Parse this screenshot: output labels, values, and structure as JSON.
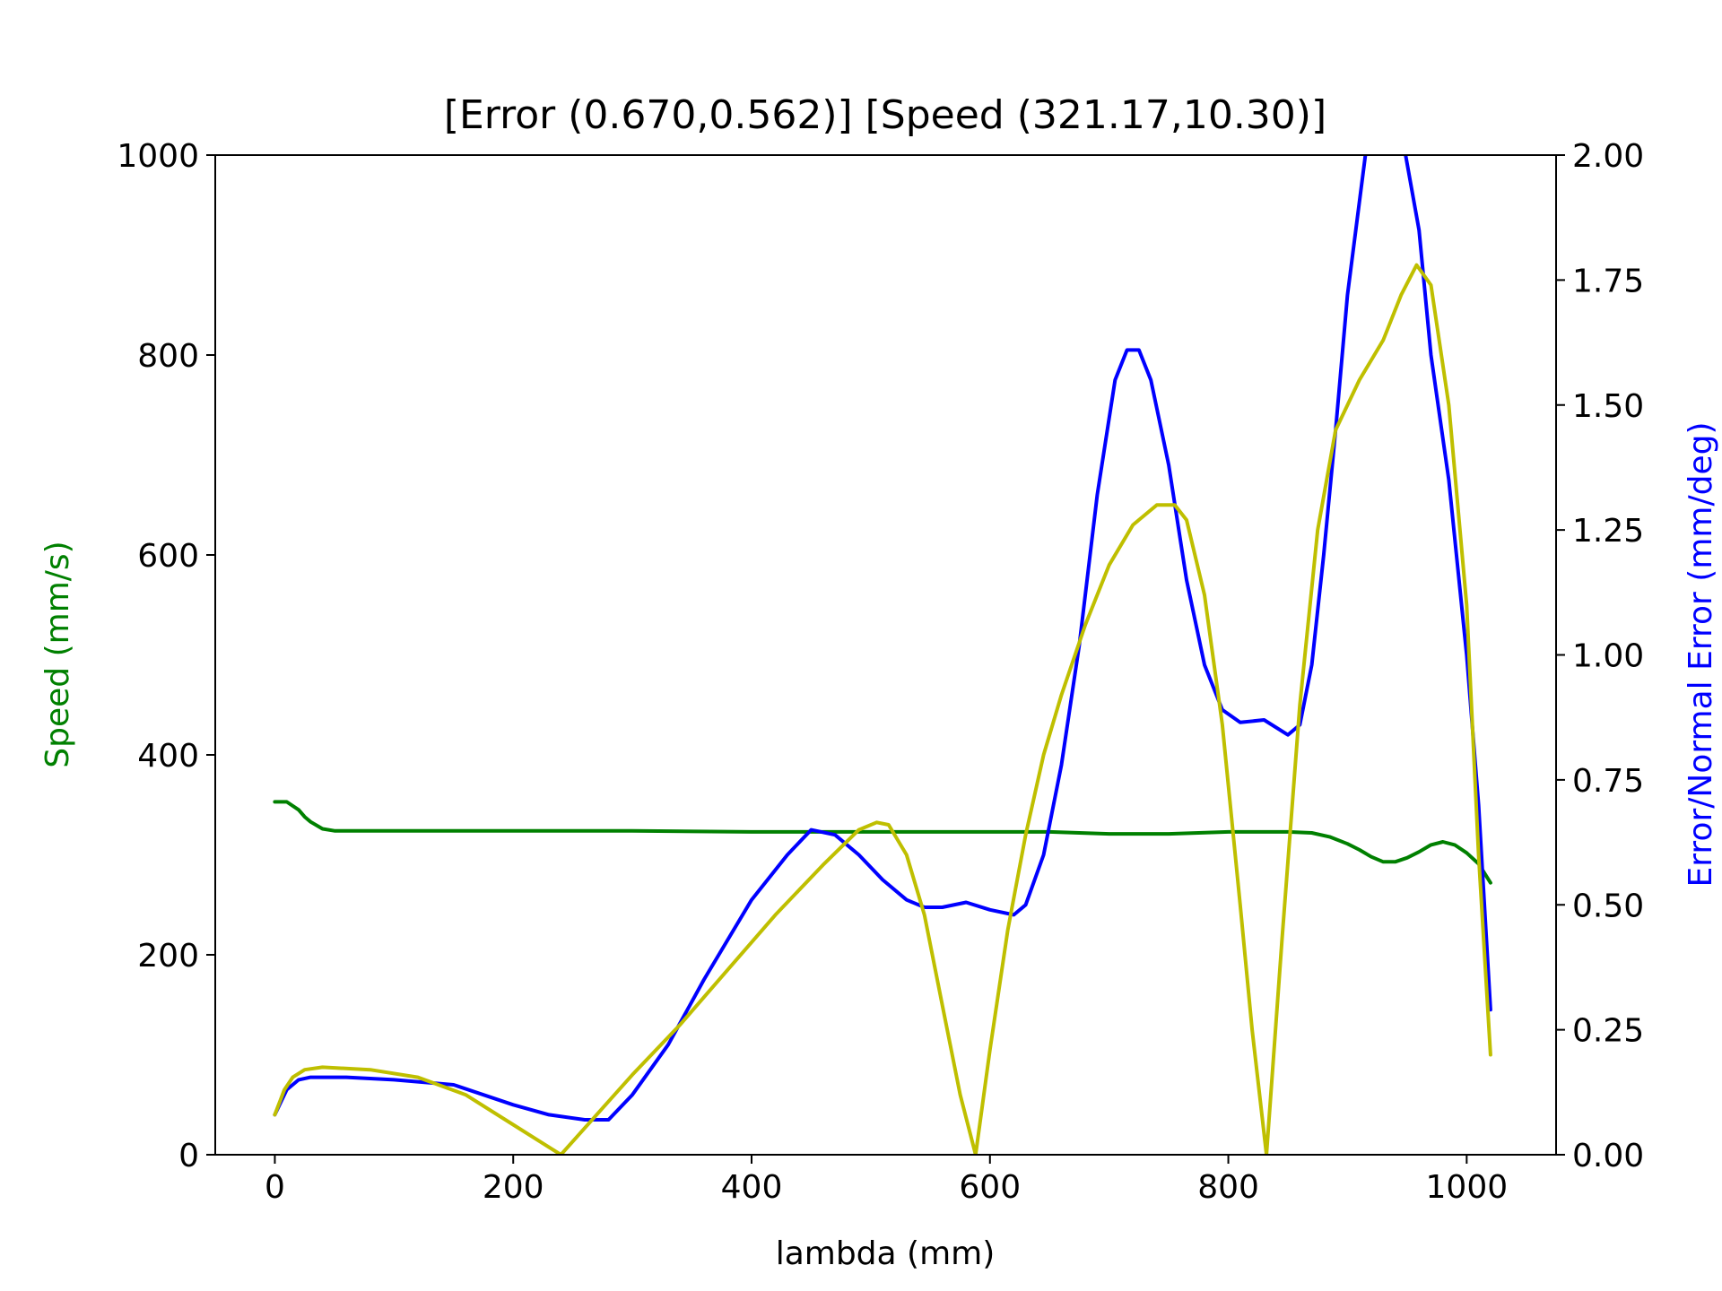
{
  "chart_data": {
    "type": "line",
    "title": "[Error (0.670,0.562)] [Speed (321.17,10.30)]",
    "xlabel": "lambda (mm)",
    "ylabel_left": "Speed (mm/s)",
    "ylabel_right": "Error/Normal Error (mm/deg)",
    "xlim": [
      -50,
      1075
    ],
    "ylim_left": [
      0,
      1000
    ],
    "ylim_right": [
      0.0,
      2.0
    ],
    "x_ticks": [
      "0",
      "200",
      "400",
      "600",
      "800",
      "1000"
    ],
    "y_left_ticks": [
      "0",
      "200",
      "400",
      "600",
      "800",
      "1000"
    ],
    "y_right_ticks": [
      "0.00",
      "0.25",
      "0.50",
      "0.75",
      "1.00",
      "1.25",
      "1.50",
      "1.75",
      "2.00"
    ],
    "grid": false,
    "colors": {
      "speed": "#008000",
      "error": "#0000ff",
      "normal_error": "#bfbf00",
      "axes": "#000000"
    },
    "series": [
      {
        "axis": "left",
        "color": "#008000",
        "x": [
          0,
          10,
          20,
          25,
          30,
          40,
          50,
          100,
          200,
          300,
          400,
          500,
          550,
          650,
          700,
          750,
          800,
          850,
          870,
          885,
          900,
          910,
          920,
          930,
          940,
          950,
          960,
          970,
          980,
          990,
          1000,
          1010,
          1020
        ],
        "y": [
          353,
          353,
          345,
          338,
          333,
          326,
          324,
          324,
          324,
          324,
          323,
          323,
          323,
          323,
          321,
          321,
          323,
          323,
          322,
          318,
          311,
          305,
          298,
          293,
          293,
          297,
          303,
          310,
          313,
          310,
          302,
          291,
          272
        ]
      },
      {
        "axis": "right",
        "color": "#0000ff",
        "x": [
          0,
          10,
          20,
          30,
          40,
          60,
          100,
          150,
          200,
          230,
          260,
          280,
          300,
          330,
          360,
          400,
          430,
          450,
          470,
          490,
          510,
          530,
          545,
          560,
          580,
          600,
          620,
          630,
          645,
          660,
          675,
          690,
          705,
          715,
          725,
          735,
          750,
          765,
          780,
          795,
          810,
          830,
          850,
          860,
          870,
          880,
          890,
          900,
          915,
          930,
          945,
          960,
          970,
          985,
          1000,
          1010,
          1020
        ],
        "y": [
          0.08,
          0.13,
          0.15,
          0.155,
          0.155,
          0.155,
          0.15,
          0.14,
          0.1,
          0.08,
          0.07,
          0.07,
          0.12,
          0.22,
          0.35,
          0.51,
          0.6,
          0.65,
          0.64,
          0.6,
          0.55,
          0.51,
          0.495,
          0.495,
          0.505,
          0.49,
          0.48,
          0.5,
          0.6,
          0.78,
          1.02,
          1.32,
          1.55,
          1.61,
          1.61,
          1.55,
          1.38,
          1.15,
          0.98,
          0.89,
          0.865,
          0.87,
          0.84,
          0.86,
          0.98,
          1.2,
          1.45,
          1.72,
          2.0,
          2.08,
          2.05,
          1.85,
          1.6,
          1.35,
          1.0,
          0.7,
          0.29
        ]
      },
      {
        "axis": "right",
        "color": "#bfbf00",
        "x": [
          0,
          8,
          15,
          25,
          40,
          80,
          120,
          160,
          200,
          240,
          270,
          300,
          340,
          380,
          420,
          460,
          490,
          505,
          515,
          530,
          545,
          560,
          575,
          588,
          600,
          615,
          630,
          645,
          660,
          680,
          700,
          720,
          740,
          755,
          765,
          780,
          795,
          810,
          820,
          832,
          845,
          860,
          875,
          890,
          910,
          930,
          945,
          958,
          970,
          985,
          1000,
          1010,
          1020
        ],
        "y": [
          0.08,
          0.13,
          0.155,
          0.17,
          0.175,
          0.17,
          0.155,
          0.12,
          0.06,
          0.0,
          0.08,
          0.16,
          0.26,
          0.37,
          0.48,
          0.58,
          0.65,
          0.665,
          0.66,
          0.6,
          0.48,
          0.3,
          0.12,
          0.0,
          0.21,
          0.45,
          0.64,
          0.8,
          0.92,
          1.06,
          1.18,
          1.26,
          1.3,
          1.3,
          1.27,
          1.12,
          0.86,
          0.5,
          0.25,
          0.0,
          0.43,
          0.9,
          1.25,
          1.45,
          1.55,
          1.63,
          1.72,
          1.78,
          1.74,
          1.5,
          1.1,
          0.6,
          0.2
        ]
      }
    ]
  }
}
